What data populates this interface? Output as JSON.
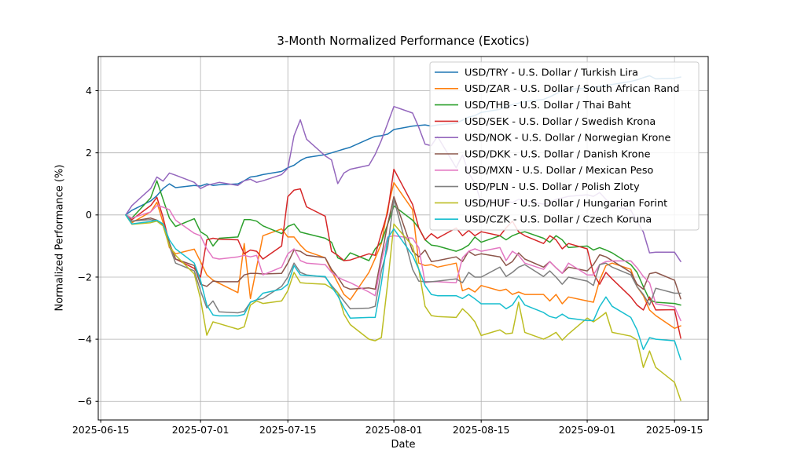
{
  "chart_data": {
    "type": "line",
    "title": "3-Month Normalized Performance (Exotics)",
    "xlabel": "Date",
    "ylabel": "Normalized Performance (%)",
    "grid": true,
    "legend_position": "upper right",
    "x_tick_labels": [
      "2025-06-15",
      "2025-07-01",
      "2025-07-15",
      "2025-08-01",
      "2025-08-15",
      "2025-09-01",
      "2025-09-15"
    ],
    "y_tick_values": [
      4,
      2,
      0,
      -2,
      -4,
      -6
    ],
    "ylim": [
      -6.6,
      5.1
    ],
    "xlim_days_from_first_tick": [
      -0.4,
      97.4
    ],
    "first_tick_date": "2025-06-15",
    "dates": [
      "2025-06-19",
      "2025-06-20",
      "2025-06-23",
      "2025-06-24",
      "2025-06-25",
      "2025-06-26",
      "2025-06-27",
      "2025-06-30",
      "2025-07-01",
      "2025-07-02",
      "2025-07-03",
      "2025-07-04",
      "2025-07-07",
      "2025-07-08",
      "2025-07-09",
      "2025-07-10",
      "2025-07-11",
      "2025-07-14",
      "2025-07-15",
      "2025-07-16",
      "2025-07-17",
      "2025-07-18",
      "2025-07-21",
      "2025-07-22",
      "2025-07-23",
      "2025-07-24",
      "2025-07-25",
      "2025-07-28",
      "2025-07-29",
      "2025-07-30",
      "2025-07-31",
      "2025-08-01",
      "2025-08-04",
      "2025-08-05",
      "2025-08-06",
      "2025-08-07",
      "2025-08-08",
      "2025-08-11",
      "2025-08-12",
      "2025-08-13",
      "2025-08-14",
      "2025-08-15",
      "2025-08-18",
      "2025-08-19",
      "2025-08-20",
      "2025-08-21",
      "2025-08-22",
      "2025-08-25",
      "2025-08-26",
      "2025-08-27",
      "2025-08-28",
      "2025-08-29",
      "2025-09-01",
      "2025-09-02",
      "2025-09-03",
      "2025-09-04",
      "2025-09-05",
      "2025-09-08",
      "2025-09-09",
      "2025-09-10",
      "2025-09-11",
      "2025-09-12",
      "2025-09-15",
      "2025-09-16"
    ],
    "series": [
      {
        "code": "USD/TRY",
        "name": "U.S. Dollar / Turkish Lira",
        "label": "USD/TRY - U.S. Dollar / Turkish Lira",
        "color": "#1f77b4",
        "values": [
          0.0,
          0.15,
          0.45,
          0.62,
          0.85,
          1.0,
          0.88,
          0.95,
          0.93,
          1.0,
          0.95,
          0.97,
          1.0,
          1.1,
          1.22,
          1.25,
          1.3,
          1.4,
          1.52,
          1.6,
          1.75,
          1.85,
          1.94,
          2.0,
          2.06,
          2.12,
          2.18,
          2.45,
          2.53,
          2.55,
          2.6,
          2.75,
          2.86,
          2.88,
          2.9,
          2.86,
          2.9,
          2.95,
          3.05,
          3.15,
          3.2,
          3.3,
          3.4,
          3.5,
          3.55,
          3.6,
          3.65,
          3.72,
          3.8,
          3.9,
          4.0,
          4.05,
          4.08,
          4.1,
          4.15,
          4.17,
          4.2,
          4.3,
          4.35,
          4.42,
          4.48,
          4.38,
          4.4,
          4.44
        ]
      },
      {
        "code": "USD/ZAR",
        "name": "U.S. Dollar / South African Rand",
        "label": "USD/ZAR - U.S. Dollar / South African Rand",
        "color": "#ff7f0e",
        "values": [
          0.0,
          -0.25,
          0.1,
          0.41,
          -0.25,
          -1.05,
          -1.25,
          -1.1,
          -1.5,
          -1.93,
          -2.1,
          -2.2,
          -2.5,
          -0.92,
          -2.69,
          -1.68,
          -0.67,
          -0.45,
          -0.71,
          -0.71,
          -0.97,
          -1.17,
          -1.38,
          -1.8,
          -2.18,
          -2.56,
          -2.73,
          -1.85,
          -1.4,
          -0.92,
          0.2,
          1.04,
          0.17,
          -1.55,
          -1.63,
          -1.6,
          -1.68,
          -1.55,
          -2.44,
          -2.36,
          -2.48,
          -2.27,
          -2.44,
          -2.39,
          -2.56,
          -2.48,
          -2.56,
          -2.56,
          -2.77,
          -2.56,
          -2.86,
          -2.64,
          -2.77,
          -2.81,
          -2.1,
          -1.63,
          -1.55,
          -1.75,
          -2.31,
          -2.6,
          -3.06,
          -3.24,
          -3.65,
          -3.57
        ]
      },
      {
        "code": "USD/THB",
        "name": "U.S. Dollar / Thai Baht",
        "label": "USD/THB - U.S. Dollar / Thai Baht",
        "color": "#2ca02c",
        "values": [
          0.0,
          -0.1,
          0.55,
          1.1,
          0.5,
          -0.1,
          -0.37,
          -0.12,
          -0.54,
          -0.67,
          -1.0,
          -0.75,
          -0.71,
          -0.15,
          -0.15,
          -0.2,
          -0.35,
          -0.6,
          -0.37,
          -0.29,
          -0.55,
          -0.6,
          -0.75,
          -0.88,
          -1.38,
          -1.47,
          -1.22,
          -1.47,
          -1.09,
          -0.88,
          -0.3,
          0.29,
          -0.17,
          -0.42,
          -0.8,
          -0.97,
          -1.0,
          -1.17,
          -1.09,
          -0.97,
          -0.71,
          -0.88,
          -0.67,
          -0.8,
          -0.67,
          -0.59,
          -0.54,
          -0.75,
          -0.88,
          -0.67,
          -0.8,
          -1.05,
          -1.0,
          -1.13,
          -1.05,
          -1.13,
          -1.22,
          -1.6,
          -1.85,
          -2.31,
          -2.73,
          -2.81,
          -2.85,
          -2.9
        ]
      },
      {
        "code": "USD/SEK",
        "name": "U.S. Dollar / Swedish Krona",
        "label": "USD/SEK - U.S. Dollar / Swedish Krona",
        "color": "#d62728",
        "values": [
          0.0,
          -0.15,
          0.3,
          0.57,
          -0.08,
          -0.92,
          -1.42,
          -1.72,
          -2.0,
          -0.8,
          -0.75,
          -0.78,
          -0.8,
          -1.25,
          -1.13,
          -1.17,
          -1.42,
          -1.0,
          0.59,
          0.8,
          0.84,
          0.26,
          -0.04,
          -1.17,
          -1.3,
          -1.47,
          -1.45,
          -1.25,
          -1.3,
          -0.59,
          0.08,
          1.47,
          0.34,
          -0.42,
          -0.8,
          -0.6,
          -0.75,
          -0.42,
          -0.67,
          -0.5,
          -0.67,
          -0.54,
          -0.67,
          -0.42,
          -0.2,
          -0.54,
          -0.67,
          -0.92,
          -0.67,
          -0.8,
          -1.09,
          -0.92,
          -1.09,
          -1.88,
          -2.23,
          -1.85,
          -2.06,
          -2.64,
          -2.9,
          -3.06,
          -2.64,
          -3.06,
          -3.05,
          -3.97
        ]
      },
      {
        "code": "USD/NOK",
        "name": "U.S. Dollar / Norwegian Krone",
        "label": "USD/NOK - U.S. Dollar / Norwegian Krone",
        "color": "#9467bd",
        "values": [
          0.0,
          0.3,
          0.85,
          1.22,
          1.09,
          1.35,
          1.28,
          1.05,
          0.85,
          0.95,
          1.0,
          1.05,
          0.95,
          1.1,
          1.15,
          1.05,
          1.1,
          1.3,
          1.5,
          2.55,
          3.06,
          2.44,
          1.9,
          1.77,
          1.01,
          1.35,
          1.47,
          1.6,
          1.95,
          2.4,
          2.95,
          3.49,
          3.28,
          2.82,
          2.28,
          2.23,
          2.53,
          1.52,
          1.93,
          1.35,
          1.02,
          0.41,
          0.5,
          0.45,
          0.4,
          0.5,
          0.45,
          0.35,
          0.4,
          0.5,
          0.55,
          0.6,
          0.65,
          0.6,
          0.72,
          0.5,
          0.3,
          0.15,
          -0.2,
          -0.55,
          -1.22,
          -1.2,
          -1.2,
          -1.5
        ]
      },
      {
        "code": "USD/DKK",
        "name": "U.S. Dollar / Danish Krone",
        "label": "USD/DKK - U.S. Dollar / Danish Krone",
        "color": "#8c564b",
        "values": [
          0.0,
          -0.2,
          -0.1,
          -0.17,
          -0.3,
          -0.9,
          -1.42,
          -1.63,
          -2.23,
          -2.3,
          -2.13,
          -2.15,
          -2.15,
          -1.93,
          -1.88,
          -1.88,
          -1.9,
          -1.88,
          -1.55,
          -1.13,
          -1.17,
          -1.3,
          -1.38,
          -1.75,
          -2.0,
          -2.31,
          -2.39,
          -2.35,
          -2.39,
          -1.35,
          -0.3,
          0.59,
          -1.17,
          -1.35,
          -1.13,
          -1.5,
          -1.47,
          -1.35,
          -1.5,
          -1.17,
          -1.3,
          -1.25,
          -1.35,
          -1.63,
          -1.5,
          -1.22,
          -1.42,
          -1.68,
          -1.5,
          -1.7,
          -1.88,
          -1.68,
          -1.8,
          -1.6,
          -1.28,
          -1.35,
          -1.47,
          -1.85,
          -2.23,
          -2.39,
          -1.89,
          -1.85,
          -2.1,
          -2.7
        ]
      },
      {
        "code": "USD/MXN",
        "name": "U.S. Dollar / Mexican Peso",
        "label": "USD/MXN - U.S. Dollar / Mexican Peso",
        "color": "#e377c2",
        "values": [
          0.0,
          -0.1,
          0.1,
          0.3,
          0.25,
          0.17,
          -0.17,
          -0.59,
          -0.67,
          -1.09,
          -1.38,
          -1.42,
          -1.35,
          -1.3,
          -1.35,
          -1.3,
          -1.93,
          -1.68,
          -1.25,
          -1.09,
          -1.47,
          -1.55,
          -1.6,
          -1.85,
          -2.0,
          -2.1,
          -2.18,
          -2.48,
          -2.6,
          -1.5,
          -0.71,
          -0.67,
          -0.75,
          -1.05,
          -2.18,
          -2.15,
          -2.15,
          -2.18,
          -1.38,
          -1.17,
          -1.09,
          -1.17,
          -1.05,
          -1.47,
          -1.17,
          -1.3,
          -1.55,
          -1.75,
          -1.5,
          -1.7,
          -1.88,
          -1.55,
          -1.93,
          -1.93,
          -1.6,
          -1.5,
          -1.48,
          -1.48,
          -1.7,
          -1.98,
          -2.18,
          -2.86,
          -2.96,
          -3.4
        ]
      },
      {
        "code": "USD/PLN",
        "name": "U.S. Dollar / Polish Zloty",
        "label": "USD/PLN - U.S. Dollar / Polish Zloty",
        "color": "#7f7f7f",
        "values": [
          0.0,
          -0.2,
          -0.15,
          -0.2,
          -0.35,
          -1.0,
          -1.55,
          -1.8,
          -2.44,
          -2.99,
          -2.77,
          -3.12,
          -3.15,
          -3.1,
          -2.81,
          -2.73,
          -2.69,
          -2.3,
          -2.0,
          -1.55,
          -1.85,
          -1.93,
          -2.0,
          -2.27,
          -2.5,
          -2.77,
          -3.02,
          -3.0,
          -2.94,
          -1.8,
          -1.05,
          0.51,
          -1.75,
          -2.13,
          -2.15,
          -2.15,
          -2.13,
          -2.06,
          -2.18,
          -1.85,
          -2.0,
          -2.0,
          -1.68,
          -1.98,
          -1.85,
          -1.68,
          -1.6,
          -1.98,
          -1.8,
          -2.0,
          -2.23,
          -2.0,
          -2.13,
          -2.27,
          -1.6,
          -1.55,
          -1.68,
          -1.93,
          -2.31,
          -2.56,
          -2.9,
          -2.36,
          -2.52,
          -2.52
        ]
      },
      {
        "code": "USD/HUF",
        "name": "U.S. Dollar / Hungarian Forint",
        "label": "USD/HUF - U.S. Dollar / Hungarian Forint",
        "color": "#bcbd22",
        "values": [
          0.0,
          -0.3,
          -0.25,
          -0.2,
          -0.35,
          -1.0,
          -1.3,
          -1.9,
          -2.7,
          -3.87,
          -3.44,
          -3.5,
          -3.68,
          -3.6,
          -2.9,
          -2.77,
          -2.85,
          -2.77,
          -2.44,
          -1.85,
          -2.18,
          -2.2,
          -2.23,
          -2.36,
          -2.5,
          -3.19,
          -3.53,
          -4.0,
          -4.05,
          -3.95,
          -2.2,
          -0.29,
          -1.0,
          -1.75,
          -2.94,
          -3.24,
          -3.27,
          -3.3,
          -3.02,
          -3.2,
          -3.44,
          -3.88,
          -3.7,
          -3.83,
          -3.8,
          -2.81,
          -3.78,
          -4.0,
          -3.9,
          -3.78,
          -4.03,
          -3.83,
          -3.32,
          -3.44,
          -3.3,
          -3.14,
          -3.78,
          -3.9,
          -4.03,
          -4.91,
          -4.38,
          -4.91,
          -5.39,
          -5.97
        ]
      },
      {
        "code": "USD/CZK",
        "name": "U.S. Dollar / Czech Koruna",
        "label": "USD/CZK - U.S. Dollar / Czech Koruna",
        "color": "#17becf",
        "values": [
          0.0,
          -0.29,
          -0.21,
          -0.17,
          -0.29,
          -0.8,
          -1.09,
          -1.55,
          -2.1,
          -2.9,
          -3.22,
          -3.25,
          -3.25,
          -3.2,
          -2.81,
          -2.73,
          -2.52,
          -2.39,
          -2.23,
          -1.63,
          -1.93,
          -1.95,
          -1.98,
          -2.31,
          -2.6,
          -2.99,
          -3.32,
          -3.3,
          -3.3,
          -2.2,
          -0.75,
          -0.45,
          -1.3,
          -1.75,
          -2.27,
          -2.56,
          -2.6,
          -2.6,
          -2.69,
          -2.56,
          -2.7,
          -2.86,
          -2.86,
          -3.02,
          -2.9,
          -2.6,
          -2.9,
          -3.14,
          -3.27,
          -3.32,
          -3.19,
          -3.32,
          -3.4,
          -3.4,
          -2.95,
          -2.64,
          -2.94,
          -3.3,
          -3.7,
          -4.33,
          -3.95,
          -4.0,
          -4.05,
          -4.66
        ]
      }
    ]
  }
}
